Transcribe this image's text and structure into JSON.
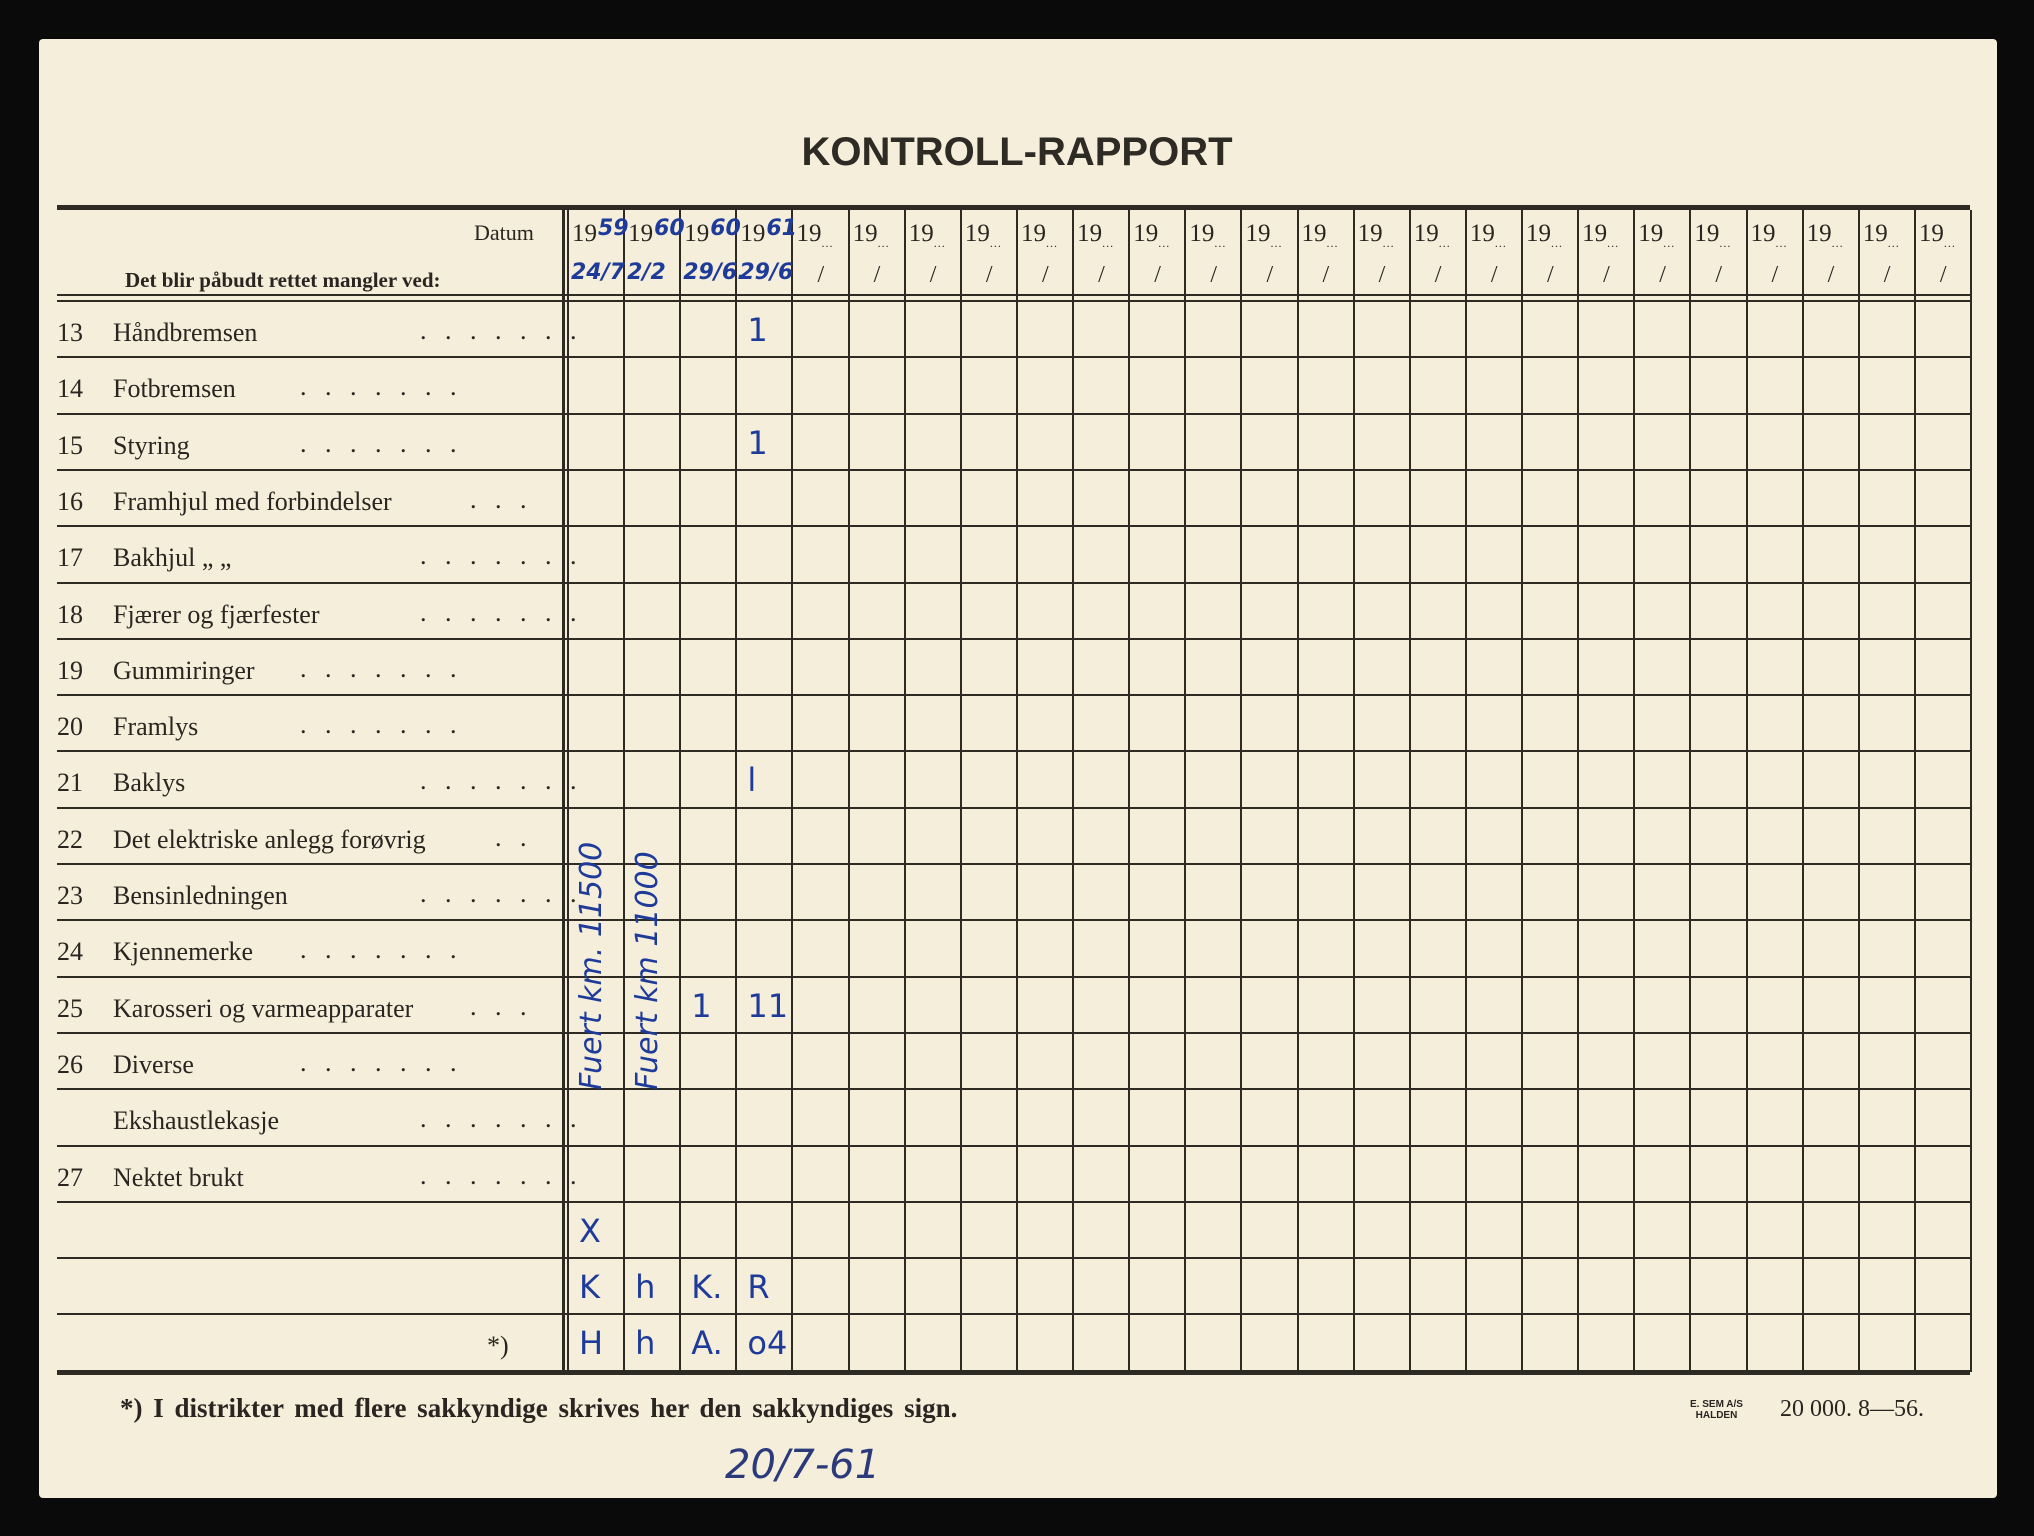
{
  "title": "KONTROLL-RAPPORT",
  "header": {
    "datum_label": "Datum",
    "subtitle": "Det blir påbudt rettet mangler ved:",
    "year_prefix": "19",
    "date_sep": "/"
  },
  "rows": [
    {
      "num": "13",
      "label": "Håndbremsen"
    },
    {
      "num": "14",
      "label": "Fotbremsen"
    },
    {
      "num": "15",
      "label": "Styring"
    },
    {
      "num": "16",
      "label": "Framhjul med forbindelser"
    },
    {
      "num": "17",
      "label": "Bakhjul  „    „"
    },
    {
      "num": "18",
      "label": "Fjærer og fjærfester"
    },
    {
      "num": "19",
      "label": "Gummiringer"
    },
    {
      "num": "20",
      "label": "Framlys"
    },
    {
      "num": "21",
      "label": "Baklys"
    },
    {
      "num": "22",
      "label": "Det elektriske anlegg forøvrig"
    },
    {
      "num": "23",
      "label": "Bensinledningen"
    },
    {
      "num": "24",
      "label": "Kjennemerke"
    },
    {
      "num": "25",
      "label": "Karosseri og varmeapparater"
    },
    {
      "num": "26",
      "label": "Diverse"
    },
    {
      "num": "",
      "label": "Ekshaustlekasje"
    },
    {
      "num": "27",
      "label": "Nektet brukt"
    },
    {
      "num": "",
      "label": ""
    },
    {
      "num": "",
      "label": ""
    },
    {
      "num": "",
      "label": "*)"
    }
  ],
  "column_count": 25,
  "handwritten_dates": [
    {
      "col": 0,
      "year": "59",
      "date": "24/7"
    },
    {
      "col": 1,
      "year": "60",
      "date": "2/2"
    },
    {
      "col": 2,
      "year": "60",
      "date": "29/6."
    },
    {
      "col": 3,
      "year": "61",
      "date": "29/6"
    }
  ],
  "handwritten_marks": [
    {
      "row": 0,
      "col": 3,
      "text": "1"
    },
    {
      "row": 2,
      "col": 3,
      "text": "1"
    },
    {
      "row": 8,
      "col": 3,
      "text": "l"
    },
    {
      "row": 12,
      "col": 2,
      "text": "1"
    },
    {
      "row": 12,
      "col": 3,
      "text": "11"
    },
    {
      "row": 16,
      "col": 0,
      "text": "X"
    },
    {
      "row": 17,
      "col": 0,
      "text": "K"
    },
    {
      "row": 17,
      "col": 1,
      "text": "h"
    },
    {
      "row": 17,
      "col": 2,
      "text": "K."
    },
    {
      "row": 17,
      "col": 3,
      "text": "R"
    },
    {
      "row": 18,
      "col": 0,
      "text": "H"
    },
    {
      "row": 18,
      "col": 1,
      "text": "h"
    },
    {
      "row": 18,
      "col": 2,
      "text": "A."
    },
    {
      "row": 18,
      "col": 3,
      "text": "o4"
    }
  ],
  "vertical_notes": [
    {
      "col": 0,
      "text": "Fuert km. 11500"
    },
    {
      "col": 1,
      "text": "Fuert km 11000"
    }
  ],
  "footer": {
    "note": "*)  I distrikter med flere sakkyndige skrives her den sakkyndiges sign.",
    "printer_line1": "E. SEM A/S",
    "printer_line2": "HALDEN",
    "print_info": "20 000.   8—56.",
    "handwritten_date": "20/7-61"
  },
  "colors": {
    "ink": "#1f3b9a",
    "paper": "#f4eedb",
    "print": "#2e2a24"
  }
}
